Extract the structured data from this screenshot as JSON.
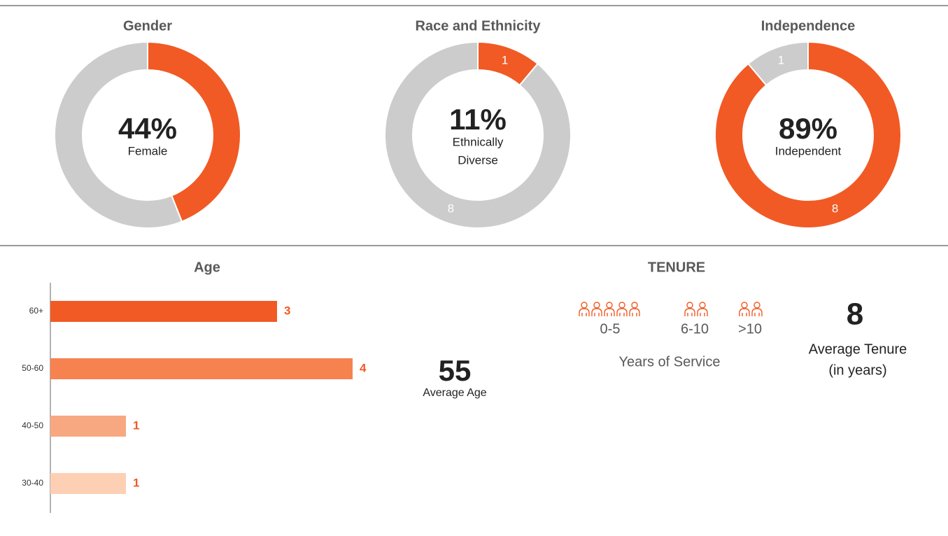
{
  "chart_data": [
    {
      "type": "pie",
      "title": "Gender",
      "values": [
        44,
        56
      ],
      "colors": [
        "#f15a24",
        "#cccccc"
      ],
      "center": {
        "value": 44,
        "value_label": "44%",
        "lines": [
          "Female"
        ]
      }
    },
    {
      "type": "pie",
      "title": "Race and Ethnicity",
      "values": [
        1,
        8
      ],
      "colors": [
        "#f15a24",
        "#cccccc"
      ],
      "show_value_labels": true,
      "center": {
        "value": 11,
        "value_label": "11%",
        "lines": [
          "Ethnically",
          "Diverse"
        ]
      }
    },
    {
      "type": "pie",
      "title": "Independence",
      "values": [
        8,
        1
      ],
      "colors": [
        "#f15a24",
        "#cccccc"
      ],
      "show_value_labels": true,
      "center": {
        "value": 89,
        "value_label": "89%",
        "lines": [
          "Independent"
        ]
      }
    },
    {
      "type": "hbar",
      "title": "Age",
      "categories": [
        "60+",
        "50-60",
        "40-50",
        "30-40"
      ],
      "values": [
        3,
        4,
        1,
        1
      ],
      "colors": [
        "#f15a24",
        "#f5824f",
        "#f8a881",
        "#fdd0b5"
      ],
      "xlim": [
        0,
        4
      ],
      "stat": {
        "value": 55,
        "label": "Average Age"
      }
    },
    {
      "type": "icons",
      "title": "TENURE",
      "groups": [
        {
          "label": "0-5",
          "count": 5
        },
        {
          "label": "6-10",
          "count": 2
        },
        {
          "label": ">10",
          "count": 2
        }
      ],
      "caption": "Years of Service",
      "color": "#f15a24",
      "stat": {
        "value": 8,
        "lines": [
          "Average Tenure",
          "(in years)"
        ]
      }
    }
  ]
}
